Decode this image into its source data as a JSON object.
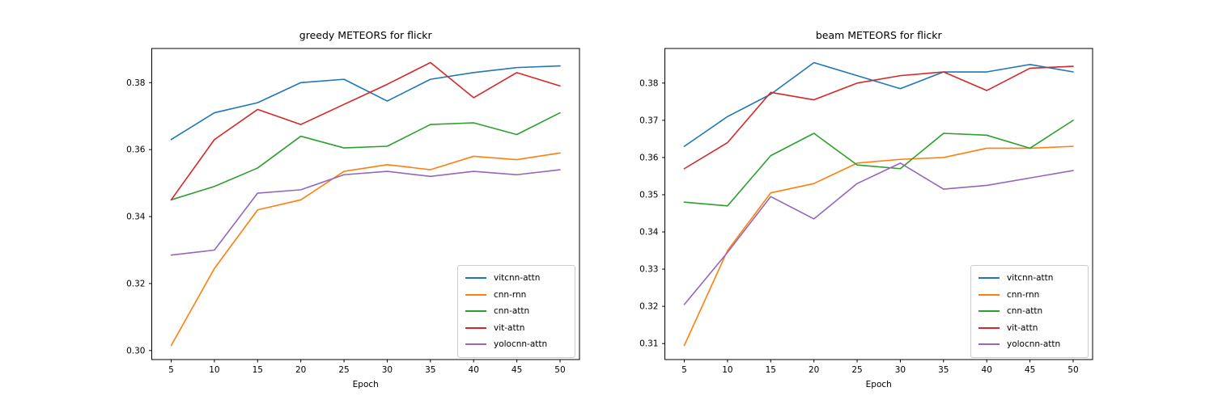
{
  "figure": {
    "background": "#ffffff",
    "text_color": "#000000",
    "axes_edge_color": "#000000",
    "legend_border_color": "#cccccc"
  },
  "chart_data": [
    {
      "type": "line",
      "title": "greedy METEORS for flickr",
      "xlabel": "Epoch",
      "ylabel": "",
      "grid": false,
      "legend_position": "lower right",
      "xlim": [
        2.75,
        52.25
      ],
      "ylim": [
        0.2973,
        0.3902
      ],
      "x": [
        5,
        10,
        15,
        20,
        25,
        30,
        35,
        40,
        45,
        50
      ],
      "xtick_labels": [
        "5",
        "10",
        "15",
        "20",
        "25",
        "30",
        "35",
        "40",
        "45",
        "50"
      ],
      "ytick_values": [
        0.3,
        0.32,
        0.34,
        0.36,
        0.38
      ],
      "ytick_labels": [
        "0.30",
        "0.32",
        "0.34",
        "0.36",
        "0.38"
      ],
      "series": [
        {
          "name": "vitcnn-attn",
          "color": "#1f77b4",
          "values": [
            0.363,
            0.371,
            0.374,
            0.38,
            0.381,
            0.3745,
            0.381,
            0.383,
            0.3845,
            0.385
          ]
        },
        {
          "name": "cnn-rnn",
          "color": "#ff7f0e",
          "values": [
            0.3015,
            0.3245,
            0.342,
            0.345,
            0.3535,
            0.3555,
            0.354,
            0.358,
            0.357,
            0.359
          ]
        },
        {
          "name": "cnn-attn",
          "color": "#2ca02c",
          "values": [
            0.345,
            0.349,
            0.3545,
            0.364,
            0.3605,
            0.361,
            0.3675,
            0.368,
            0.3645,
            0.371
          ]
        },
        {
          "name": "vit-attn",
          "color": "#d62728",
          "values": [
            0.345,
            0.363,
            0.372,
            0.3675,
            0.3735,
            0.3795,
            0.386,
            0.3755,
            0.383,
            0.379
          ]
        },
        {
          "name": "yolocnn-attn",
          "color": "#9467bd",
          "values": [
            0.3285,
            0.33,
            0.347,
            0.348,
            0.3525,
            0.3535,
            0.352,
            0.3535,
            0.3525,
            0.354
          ]
        }
      ]
    },
    {
      "type": "line",
      "title": "beam METEORS for flickr",
      "xlabel": "Epoch",
      "ylabel": "",
      "grid": false,
      "legend_position": "lower right",
      "xlim": [
        2.75,
        52.25
      ],
      "ylim": [
        0.3057,
        0.3893
      ],
      "x": [
        5,
        10,
        15,
        20,
        25,
        30,
        35,
        40,
        45,
        50
      ],
      "xtick_labels": [
        "5",
        "10",
        "15",
        "20",
        "25",
        "30",
        "35",
        "40",
        "45",
        "50"
      ],
      "ytick_values": [
        0.31,
        0.32,
        0.33,
        0.34,
        0.35,
        0.36,
        0.37,
        0.38
      ],
      "ytick_labels": [
        "0.31",
        "0.32",
        "0.33",
        "0.34",
        "0.35",
        "0.36",
        "0.37",
        "0.38"
      ],
      "series": [
        {
          "name": "vitcnn-attn",
          "color": "#1f77b4",
          "values": [
            0.363,
            0.371,
            0.377,
            0.3855,
            0.382,
            0.3785,
            0.383,
            0.383,
            0.385,
            0.383
          ]
        },
        {
          "name": "cnn-rnn",
          "color": "#ff7f0e",
          "values": [
            0.3095,
            0.335,
            0.3505,
            0.353,
            0.3585,
            0.3595,
            0.36,
            0.3625,
            0.3625,
            0.363
          ]
        },
        {
          "name": "cnn-attn",
          "color": "#2ca02c",
          "values": [
            0.348,
            0.347,
            0.3605,
            0.3665,
            0.358,
            0.357,
            0.3665,
            0.366,
            0.3625,
            0.37
          ]
        },
        {
          "name": "vit-attn",
          "color": "#d62728",
          "values": [
            0.357,
            0.364,
            0.3775,
            0.3755,
            0.38,
            0.382,
            0.383,
            0.378,
            0.384,
            0.3845
          ]
        },
        {
          "name": "yolocnn-attn",
          "color": "#9467bd",
          "values": [
            0.3205,
            0.3345,
            0.3495,
            0.3435,
            0.353,
            0.3585,
            0.3515,
            0.3525,
            0.3545,
            0.3565
          ]
        }
      ]
    }
  ]
}
